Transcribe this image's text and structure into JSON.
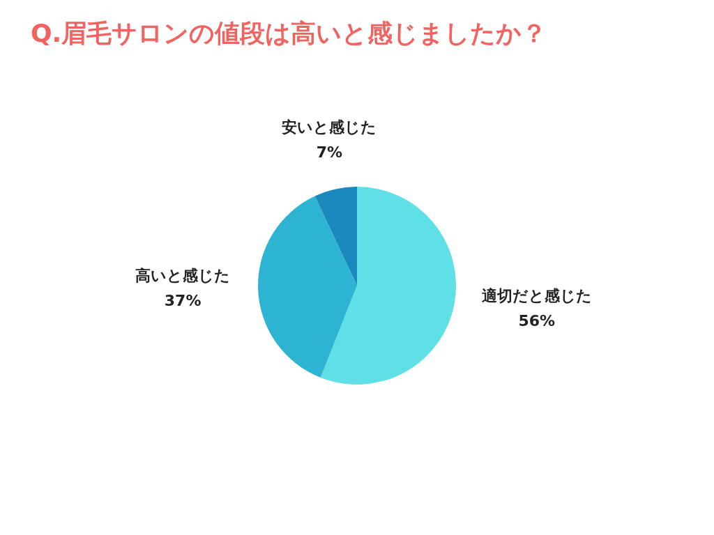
{
  "chart_data": {
    "type": "pie",
    "title": "Q.眉毛サロンの値段は高いと感じましたか？",
    "categories": [
      "適切だと感じた",
      "高いと感じた",
      "安いと感じた"
    ],
    "values": [
      56,
      37,
      7
    ],
    "colors": [
      "#5ee0e6",
      "#2db4d3",
      "#1a8abe"
    ],
    "value_labels": [
      "56%",
      "37%",
      "7%"
    ],
    "legend": false
  }
}
